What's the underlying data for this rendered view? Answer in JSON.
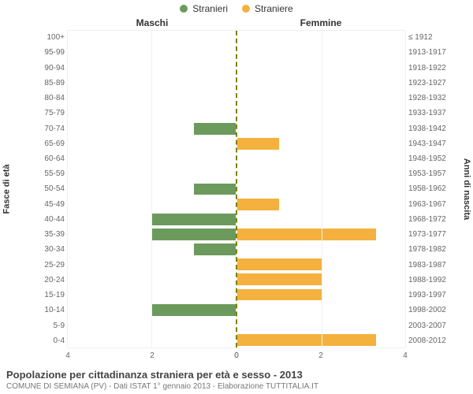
{
  "legend": {
    "items": [
      {
        "label": "Stranieri",
        "color": "#6c9a5c"
      },
      {
        "label": "Straniere",
        "color": "#f4b13e"
      }
    ]
  },
  "headers": {
    "left": "Maschi",
    "right": "Femmine"
  },
  "axis_labels": {
    "left": "Fasce di età",
    "right": "Anni di nascita"
  },
  "chart": {
    "type": "population-pyramid",
    "x_max": 4,
    "x_ticks": [
      0,
      2,
      4
    ],
    "grid_color": "#f0f0f0",
    "center_divider_color": "#808000",
    "background_color": "#ffffff",
    "label_fontsize": 10,
    "label_color": "#666666",
    "bar_fill_ratio": 0.78,
    "left_color": "#6c9a5c",
    "right_color": "#f4b13e",
    "rows": [
      {
        "age": "100+",
        "birth": "≤ 1912",
        "male": 0,
        "female": 0
      },
      {
        "age": "95-99",
        "birth": "1913-1917",
        "male": 0,
        "female": 0
      },
      {
        "age": "90-94",
        "birth": "1918-1922",
        "male": 0,
        "female": 0
      },
      {
        "age": "85-89",
        "birth": "1923-1927",
        "male": 0,
        "female": 0
      },
      {
        "age": "80-84",
        "birth": "1928-1932",
        "male": 0,
        "female": 0
      },
      {
        "age": "75-79",
        "birth": "1933-1937",
        "male": 0,
        "female": 0
      },
      {
        "age": "70-74",
        "birth": "1938-1942",
        "male": 1,
        "female": 0
      },
      {
        "age": "65-69",
        "birth": "1943-1947",
        "male": 0,
        "female": 1
      },
      {
        "age": "60-64",
        "birth": "1948-1952",
        "male": 0,
        "female": 0
      },
      {
        "age": "55-59",
        "birth": "1953-1957",
        "male": 0,
        "female": 0
      },
      {
        "age": "50-54",
        "birth": "1958-1962",
        "male": 1,
        "female": 0
      },
      {
        "age": "45-49",
        "birth": "1963-1967",
        "male": 0,
        "female": 1
      },
      {
        "age": "40-44",
        "birth": "1968-1972",
        "male": 2,
        "female": 0
      },
      {
        "age": "35-39",
        "birth": "1973-1977",
        "male": 2,
        "female": 3.3
      },
      {
        "age": "30-34",
        "birth": "1978-1982",
        "male": 1,
        "female": 0
      },
      {
        "age": "25-29",
        "birth": "1983-1987",
        "male": 0,
        "female": 2
      },
      {
        "age": "20-24",
        "birth": "1988-1992",
        "male": 0,
        "female": 2
      },
      {
        "age": "15-19",
        "birth": "1993-1997",
        "male": 0,
        "female": 2
      },
      {
        "age": "10-14",
        "birth": "1998-2002",
        "male": 2,
        "female": 0
      },
      {
        "age": "5-9",
        "birth": "2003-2007",
        "male": 0,
        "female": 0
      },
      {
        "age": "0-4",
        "birth": "2008-2012",
        "male": 0,
        "female": 3.3
      }
    ]
  },
  "caption": {
    "title": "Popolazione per cittadinanza straniera per età e sesso - 2013",
    "subtitle": "COMUNE DI SEMIANA (PV) - Dati ISTAT 1° gennaio 2013 - Elaborazione TUTTITALIA.IT"
  }
}
